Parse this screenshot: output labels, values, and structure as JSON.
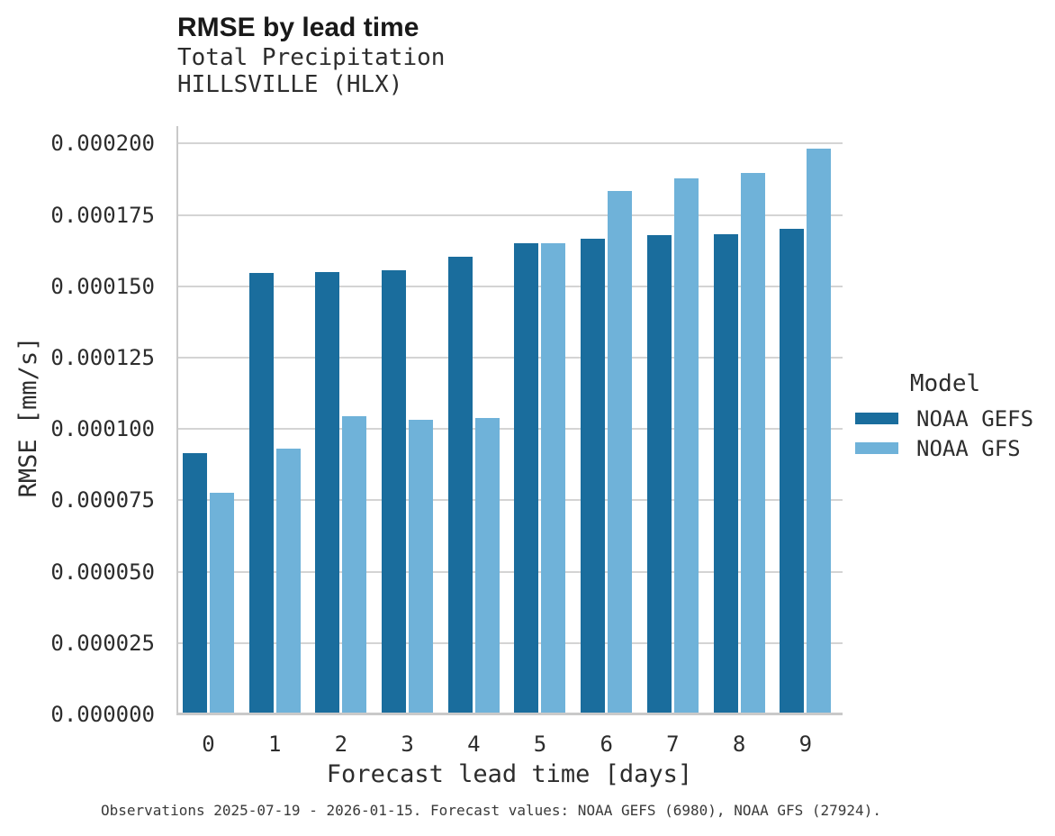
{
  "header": {
    "title": "RMSE by lead time",
    "subtitle_line1": "Total Precipitation",
    "subtitle_line2": "HILLSVILLE (HLX)"
  },
  "chart_data": {
    "type": "bar",
    "title": "RMSE by lead time",
    "subtitle": [
      "Total Precipitation",
      "HILLSVILLE (HLX)"
    ],
    "xlabel": "Forecast lead time [days]",
    "ylabel": "RMSE [mm/s]",
    "categories": [
      "0",
      "1",
      "2",
      "3",
      "4",
      "5",
      "6",
      "7",
      "8",
      "9"
    ],
    "series": [
      {
        "name": "NOAA GEFS",
        "color": "#1a6d9d",
        "values": [
          9.15e-05,
          0.0001548,
          0.000155,
          0.0001556,
          0.0001605,
          0.000165,
          0.0001667,
          0.000168,
          0.0001682,
          0.0001702
        ]
      },
      {
        "name": "NOAA GFS",
        "color": "#6fb2d9",
        "values": [
          7.78e-05,
          9.31e-05,
          0.0001045,
          0.0001033,
          0.0001038,
          0.000165,
          0.0001833,
          0.0001877,
          0.0001897,
          0.0001982
        ]
      }
    ],
    "ylim": [
      0,
      0.0002
    ],
    "yticks": [
      0.0,
      2.5e-05,
      5e-05,
      7.5e-05,
      0.0001,
      0.000125,
      0.00015,
      0.000175,
      0.0002
    ],
    "ytick_labels": [
      "0.000000",
      "0.000025",
      "0.000050",
      "0.000075",
      "0.000100",
      "0.000125",
      "0.000150",
      "0.000175",
      "0.000200"
    ],
    "grid": "horizontal",
    "legend_position": "right",
    "legend_title": "Model"
  },
  "legend": {
    "title": "Model",
    "items": [
      {
        "label": "NOAA GEFS",
        "color": "#1a6d9d"
      },
      {
        "label": "NOAA GFS",
        "color": "#6fb2d9"
      }
    ]
  },
  "footer": {
    "text": "Observations 2025-07-19 - 2026-01-15. Forecast values: NOAA GEFS (6980), NOAA GFS (27924)."
  },
  "colors": {
    "gefs_bar": "#1a6d9d",
    "gfs_bar": "#6fb2d9",
    "gridline": "#d4d4d4",
    "spine": "#c9c9c9",
    "text": "#2d2d2d",
    "title_text": "#191919"
  }
}
